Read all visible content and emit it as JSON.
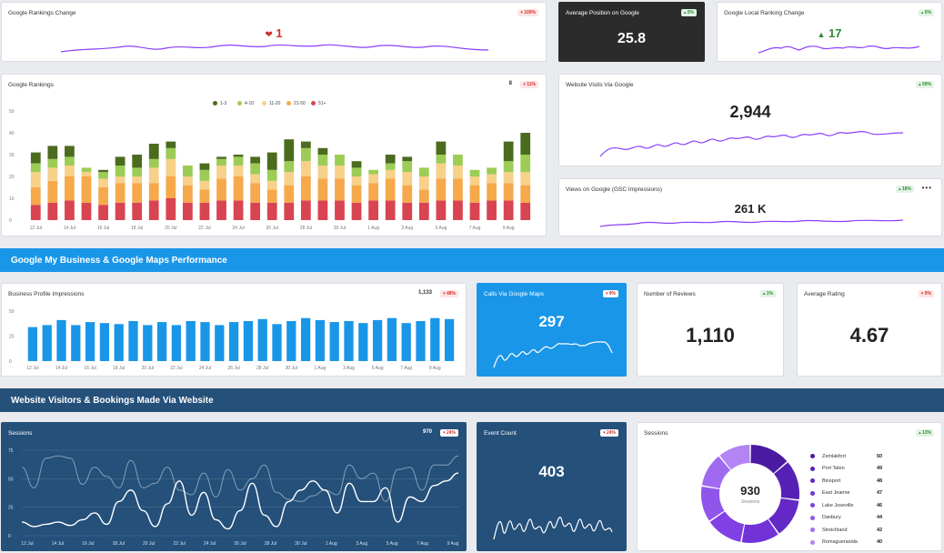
{
  "colors": {
    "purple_line": "#8a3ffc",
    "bar_blue": "#1a96e8",
    "red": "#d32f2f",
    "green": "#2e8b3a"
  },
  "rankings_change": {
    "title": "Google Rankings Change",
    "badge": "▾ 100%",
    "value": "1",
    "arrow_icon": "heart-down-icon"
  },
  "avg_position": {
    "title": "Average Position on Google",
    "badge": "▴ 0%",
    "value": "25.8"
  },
  "local_ranking": {
    "title": "Google Local Ranking Change",
    "badge": "▴ 0%",
    "value": "17",
    "arrow_icon": "triangle-up-icon"
  },
  "google_rankings": {
    "title": "Google Rankings",
    "count": "8",
    "badge": "▾ 11%",
    "legend": [
      {
        "label": "1-3",
        "color": "#4b6b1f"
      },
      {
        "label": "4-10",
        "color": "#9ccc55"
      },
      {
        "label": "11-20",
        "color": "#f7d08a"
      },
      {
        "label": "21-50",
        "color": "#f5a94b"
      },
      {
        "label": "51+",
        "color": "#d94452"
      }
    ]
  },
  "website_visits": {
    "title": "Website Visits Via Google",
    "badge": "▴ 59%",
    "value": "2,944"
  },
  "views_google": {
    "title": "Views on Google (GSC Impressions)",
    "badge": "▴ 18%",
    "value": "261 K",
    "more": "•••"
  },
  "banner_gmb": "Google My Business & Google Maps Performance",
  "profile_impressions": {
    "title": "Business Profile Impressions",
    "count": "1,133",
    "badge": "▾ 48%"
  },
  "calls_maps": {
    "title": "Calls Via Google Maps",
    "badge": "▾ 9%",
    "value": "297"
  },
  "reviews": {
    "title": "Number of Reviews",
    "badge": "▴ 1%",
    "value": "1,110"
  },
  "avg_rating": {
    "title": "Average Rating",
    "badge": "▾ 0%",
    "value": "4.67"
  },
  "banner_web": "Website Visitors & Bookings Made Via Website",
  "sessions_line": {
    "title": "Sessions",
    "count": "970",
    "badge": "▾ 24%"
  },
  "event_count": {
    "title": "Event Count",
    "badge": "▾ 24%",
    "value": "403"
  },
  "sessions_pie": {
    "title": "Sessions",
    "badge": "▴ 13%",
    "center_value": "930",
    "center_label": "Sessions"
  },
  "chart_data": [
    {
      "type": "bar",
      "stacked": true,
      "categories": [
        "12 Jul",
        "13 Jul",
        "14 Jul",
        "15 Jul",
        "16 Jul",
        "17 Jul",
        "18 Jul",
        "19 Jul",
        "20 Jul",
        "21 Jul",
        "22 Jul",
        "23 Jul",
        "24 Jul",
        "25 Jul",
        "26 Jul",
        "27 Jul",
        "28 Jul",
        "29 Jul",
        "30 Jul",
        "31 Jul",
        "1 Aug",
        "2 Aug",
        "3 Aug",
        "4 Aug",
        "5 Aug",
        "6 Aug",
        "7 Aug",
        "8 Aug",
        "9 Aug",
        "10 Aug"
      ],
      "tick_labels": [
        "12 Jul",
        "14 Jul",
        "16 Jul",
        "18 Jul",
        "20 Jul",
        "22 Jul",
        "24 Jul",
        "26 Jul",
        "28 Jul",
        "30 Jul",
        "1 Aug",
        "3 Aug",
        "5 Aug",
        "7 Aug",
        "9 Aug"
      ],
      "series": [
        {
          "name": "51+",
          "values": [
            7,
            8,
            9,
            8,
            7,
            8,
            8,
            9,
            10,
            8,
            8,
            9,
            9,
            8,
            8,
            8,
            9,
            9,
            9,
            8,
            9,
            9,
            8,
            8,
            9,
            9,
            8,
            9,
            9,
            8
          ]
        },
        {
          "name": "21-50",
          "values": [
            8,
            10,
            11,
            12,
            8,
            9,
            9,
            8,
            10,
            8,
            6,
            10,
            11,
            9,
            6,
            8,
            11,
            10,
            10,
            8,
            8,
            10,
            8,
            6,
            10,
            10,
            8,
            8,
            8,
            8
          ]
        },
        {
          "name": "11-20",
          "values": [
            7,
            6,
            5,
            2,
            4,
            3,
            3,
            7,
            8,
            4,
            4,
            6,
            5,
            4,
            4,
            6,
            7,
            6,
            6,
            4,
            4,
            4,
            6,
            6,
            7,
            6,
            4,
            4,
            5,
            6
          ]
        },
        {
          "name": "4-10",
          "values": [
            4,
            4,
            4,
            2,
            3,
            5,
            4,
            4,
            5,
            5,
            5,
            3,
            4,
            5,
            5,
            5,
            6,
            5,
            5,
            4,
            2,
            3,
            5,
            4,
            4,
            5,
            3,
            3,
            5,
            8
          ]
        },
        {
          "name": "1-3",
          "values": [
            5,
            6,
            5,
            0,
            1,
            4,
            6,
            7,
            3,
            0,
            3,
            1,
            1,
            3,
            8,
            10,
            3,
            3,
            0,
            3,
            0,
            4,
            2,
            0,
            6,
            0,
            0,
            0,
            9,
            10
          ]
        }
      ],
      "y_ticks": [
        0,
        10,
        20,
        30,
        40,
        50
      ],
      "ylim": [
        0,
        50
      ]
    },
    {
      "type": "bar",
      "categories": [
        "12 Jul",
        "13 Jul",
        "14 Jul",
        "15 Jul",
        "16 Jul",
        "17 Jul",
        "18 Jul",
        "19 Jul",
        "20 Jul",
        "21 Jul",
        "22 Jul",
        "23 Jul",
        "24 Jul",
        "25 Jul",
        "26 Jul",
        "27 Jul",
        "28 Jul",
        "29 Jul",
        "30 Jul",
        "31 Jul",
        "1 Aug",
        "2 Aug",
        "3 Aug",
        "4 Aug",
        "5 Aug",
        "6 Aug",
        "7 Aug",
        "8 Aug",
        "9 Aug",
        "10 Aug"
      ],
      "tick_labels": [
        "12 Jul",
        "14 Jul",
        "16 Jul",
        "18 Jul",
        "20 Jul",
        "22 Jul",
        "24 Jul",
        "26 Jul",
        "28 Jul",
        "30 Jul",
        "1 Aug",
        "3 Aug",
        "5 Aug",
        "7 Aug",
        "9 Aug"
      ],
      "values": [
        34,
        36,
        41,
        36,
        39,
        38,
        37,
        40,
        36,
        39,
        36,
        40,
        39,
        36,
        39,
        40,
        42,
        37,
        40,
        43,
        41,
        39,
        40,
        38,
        41,
        43,
        38,
        40,
        43,
        42
      ],
      "y_ticks": [
        0,
        25,
        50
      ],
      "ylim": [
        0,
        50
      ]
    },
    {
      "type": "line",
      "x_ticks": [
        "12 Jul",
        "14 Jul",
        "16 Jul",
        "18 Jul",
        "20 Jul",
        "22 Jul",
        "24 Jul",
        "26 Jul",
        "28 Jul",
        "30 Jul",
        "1 Aug",
        "3 Aug",
        "5 Aug",
        "7 Aug",
        "9 Aug"
      ],
      "series": [
        {
          "values": [
            60,
            42,
            68,
            70,
            68,
            45,
            60,
            52,
            42,
            66,
            42,
            46,
            60,
            40,
            36,
            55,
            34,
            58,
            40,
            50,
            62,
            38,
            32,
            30,
            35,
            40,
            36,
            62,
            50,
            55,
            30,
            58,
            60,
            40,
            62,
            62,
            70
          ]
        },
        {
          "values": [
            12,
            8,
            10,
            12,
            9,
            14,
            20,
            10,
            30,
            40,
            22,
            8,
            28,
            48,
            18,
            38,
            14,
            6,
            22,
            46,
            18,
            8,
            30,
            40,
            48,
            40,
            20,
            46,
            30,
            30,
            42,
            12,
            34,
            30,
            44,
            48,
            55
          ]
        }
      ],
      "y_ticks": [
        0,
        25,
        50,
        75
      ],
      "ylim": [
        0,
        75
      ]
    },
    {
      "type": "pie",
      "donut": true,
      "slices": [
        {
          "label": "Zemlakfort",
          "value": 50,
          "color": "#4a1aa0"
        },
        {
          "label": "Port Talon",
          "value": 49,
          "color": "#5720b5"
        },
        {
          "label": "Binsport",
          "value": 48,
          "color": "#6428c6"
        },
        {
          "label": "East Jeanne",
          "value": 47,
          "color": "#7232d8"
        },
        {
          "label": "Lake Joseville",
          "value": 46,
          "color": "#8040e4"
        },
        {
          "label": "Danbury",
          "value": 44,
          "color": "#8f55ea"
        },
        {
          "label": "Streichland",
          "value": 42,
          "color": "#a06af0"
        },
        {
          "label": "Romaguerasida",
          "value": 40,
          "color": "#b384f4"
        }
      ]
    }
  ]
}
